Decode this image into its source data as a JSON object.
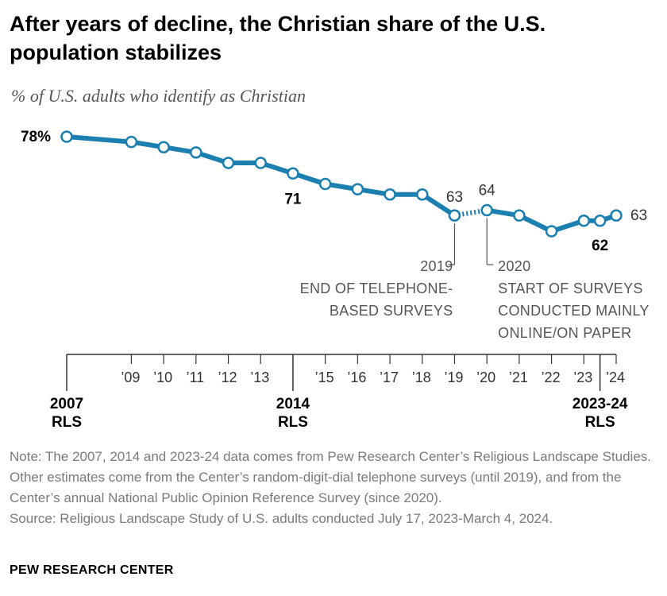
{
  "title": "After years of decline, the Christian share of the U.S. population stabilizes",
  "subtitle": "% of U.S. adults who identify as Christian",
  "colors": {
    "line": "#1b7fb0",
    "text_gray": "#555555",
    "axis": "#333333"
  },
  "chart_data": {
    "type": "line",
    "series": [
      {
        "points": [
          {
            "x": 2007,
            "y": 78
          },
          {
            "x": 2009,
            "y": 77
          },
          {
            "x": 2010,
            "y": 76
          },
          {
            "x": 2011,
            "y": 75
          },
          {
            "x": 2012,
            "y": 73
          },
          {
            "x": 2013,
            "y": 73
          },
          {
            "x": 2014,
            "y": 71
          },
          {
            "x": 2015,
            "y": 69
          },
          {
            "x": 2016,
            "y": 68
          },
          {
            "x": 2017,
            "y": 67
          },
          {
            "x": 2018,
            "y": 67
          },
          {
            "x": 2019,
            "y": 63
          },
          {
            "x": 2020,
            "y": 64
          },
          {
            "x": 2021,
            "y": 63
          },
          {
            "x": 2022,
            "y": 60
          },
          {
            "x": 2023,
            "y": 62
          },
          {
            "x": 2023.5,
            "y": 62
          },
          {
            "x": 2024,
            "y": 63
          }
        ]
      }
    ],
    "data_labels": [
      {
        "x": 2007,
        "text": "78%",
        "bold": true
      },
      {
        "x": 2014,
        "text": "71",
        "bold": true
      },
      {
        "x": 2019,
        "text": "63",
        "bold": false
      },
      {
        "x": 2020,
        "text": "64",
        "bold": false
      },
      {
        "x": 2023.5,
        "text": "62",
        "bold": true
      },
      {
        "x": 2024,
        "text": "63",
        "bold": false
      }
    ],
    "x_ticks": [
      {
        "x": 2009,
        "label": "’09"
      },
      {
        "x": 2010,
        "label": "’10"
      },
      {
        "x": 2011,
        "label": "’11"
      },
      {
        "x": 2012,
        "label": "’12"
      },
      {
        "x": 2013,
        "label": "’13"
      },
      {
        "x": 2015,
        "label": "’15"
      },
      {
        "x": 2016,
        "label": "’16"
      },
      {
        "x": 2017,
        "label": "’17"
      },
      {
        "x": 2018,
        "label": "’18"
      },
      {
        "x": 2019,
        "label": "’19"
      },
      {
        "x": 2020,
        "label": "’20"
      },
      {
        "x": 2021,
        "label": "’21"
      },
      {
        "x": 2022,
        "label": "’22"
      },
      {
        "x": 2023,
        "label": "’23"
      },
      {
        "x": 2024,
        "label": "’24"
      }
    ],
    "major_ticks": [
      {
        "x": 2007,
        "label": [
          "2007",
          "RLS"
        ]
      },
      {
        "x": 2014,
        "label": [
          "2014",
          "RLS"
        ]
      },
      {
        "x": 2023.5,
        "label": [
          "2023-24",
          "RLS"
        ]
      }
    ],
    "annotations": [
      {
        "x": 2019,
        "anchor": "end",
        "lines": [
          "2019",
          "END OF TELEPHONE-",
          "BASED SURVEYS"
        ]
      },
      {
        "x": 2020,
        "anchor": "start",
        "lines": [
          "2020",
          "START OF SURVEYS",
          "CONDUCTED MAINLY",
          "ONLINE/ON PAPER"
        ]
      }
    ],
    "dotted_segment": [
      2019,
      2020
    ]
  },
  "note": "Note: The 2007, 2014 and 2023-24 data comes from Pew Research Center’s Religious Landscape Studies. Other estimates come from the Center’s random-digit-dial telephone surveys (until 2019), and from the Center’s annual National Public Opinion Reference Survey (since 2020).",
  "source": "Source: Religious Landscape Study of U.S. adults conducted July 17, 2023-March 4, 2024.",
  "brand": "PEW RESEARCH CENTER"
}
